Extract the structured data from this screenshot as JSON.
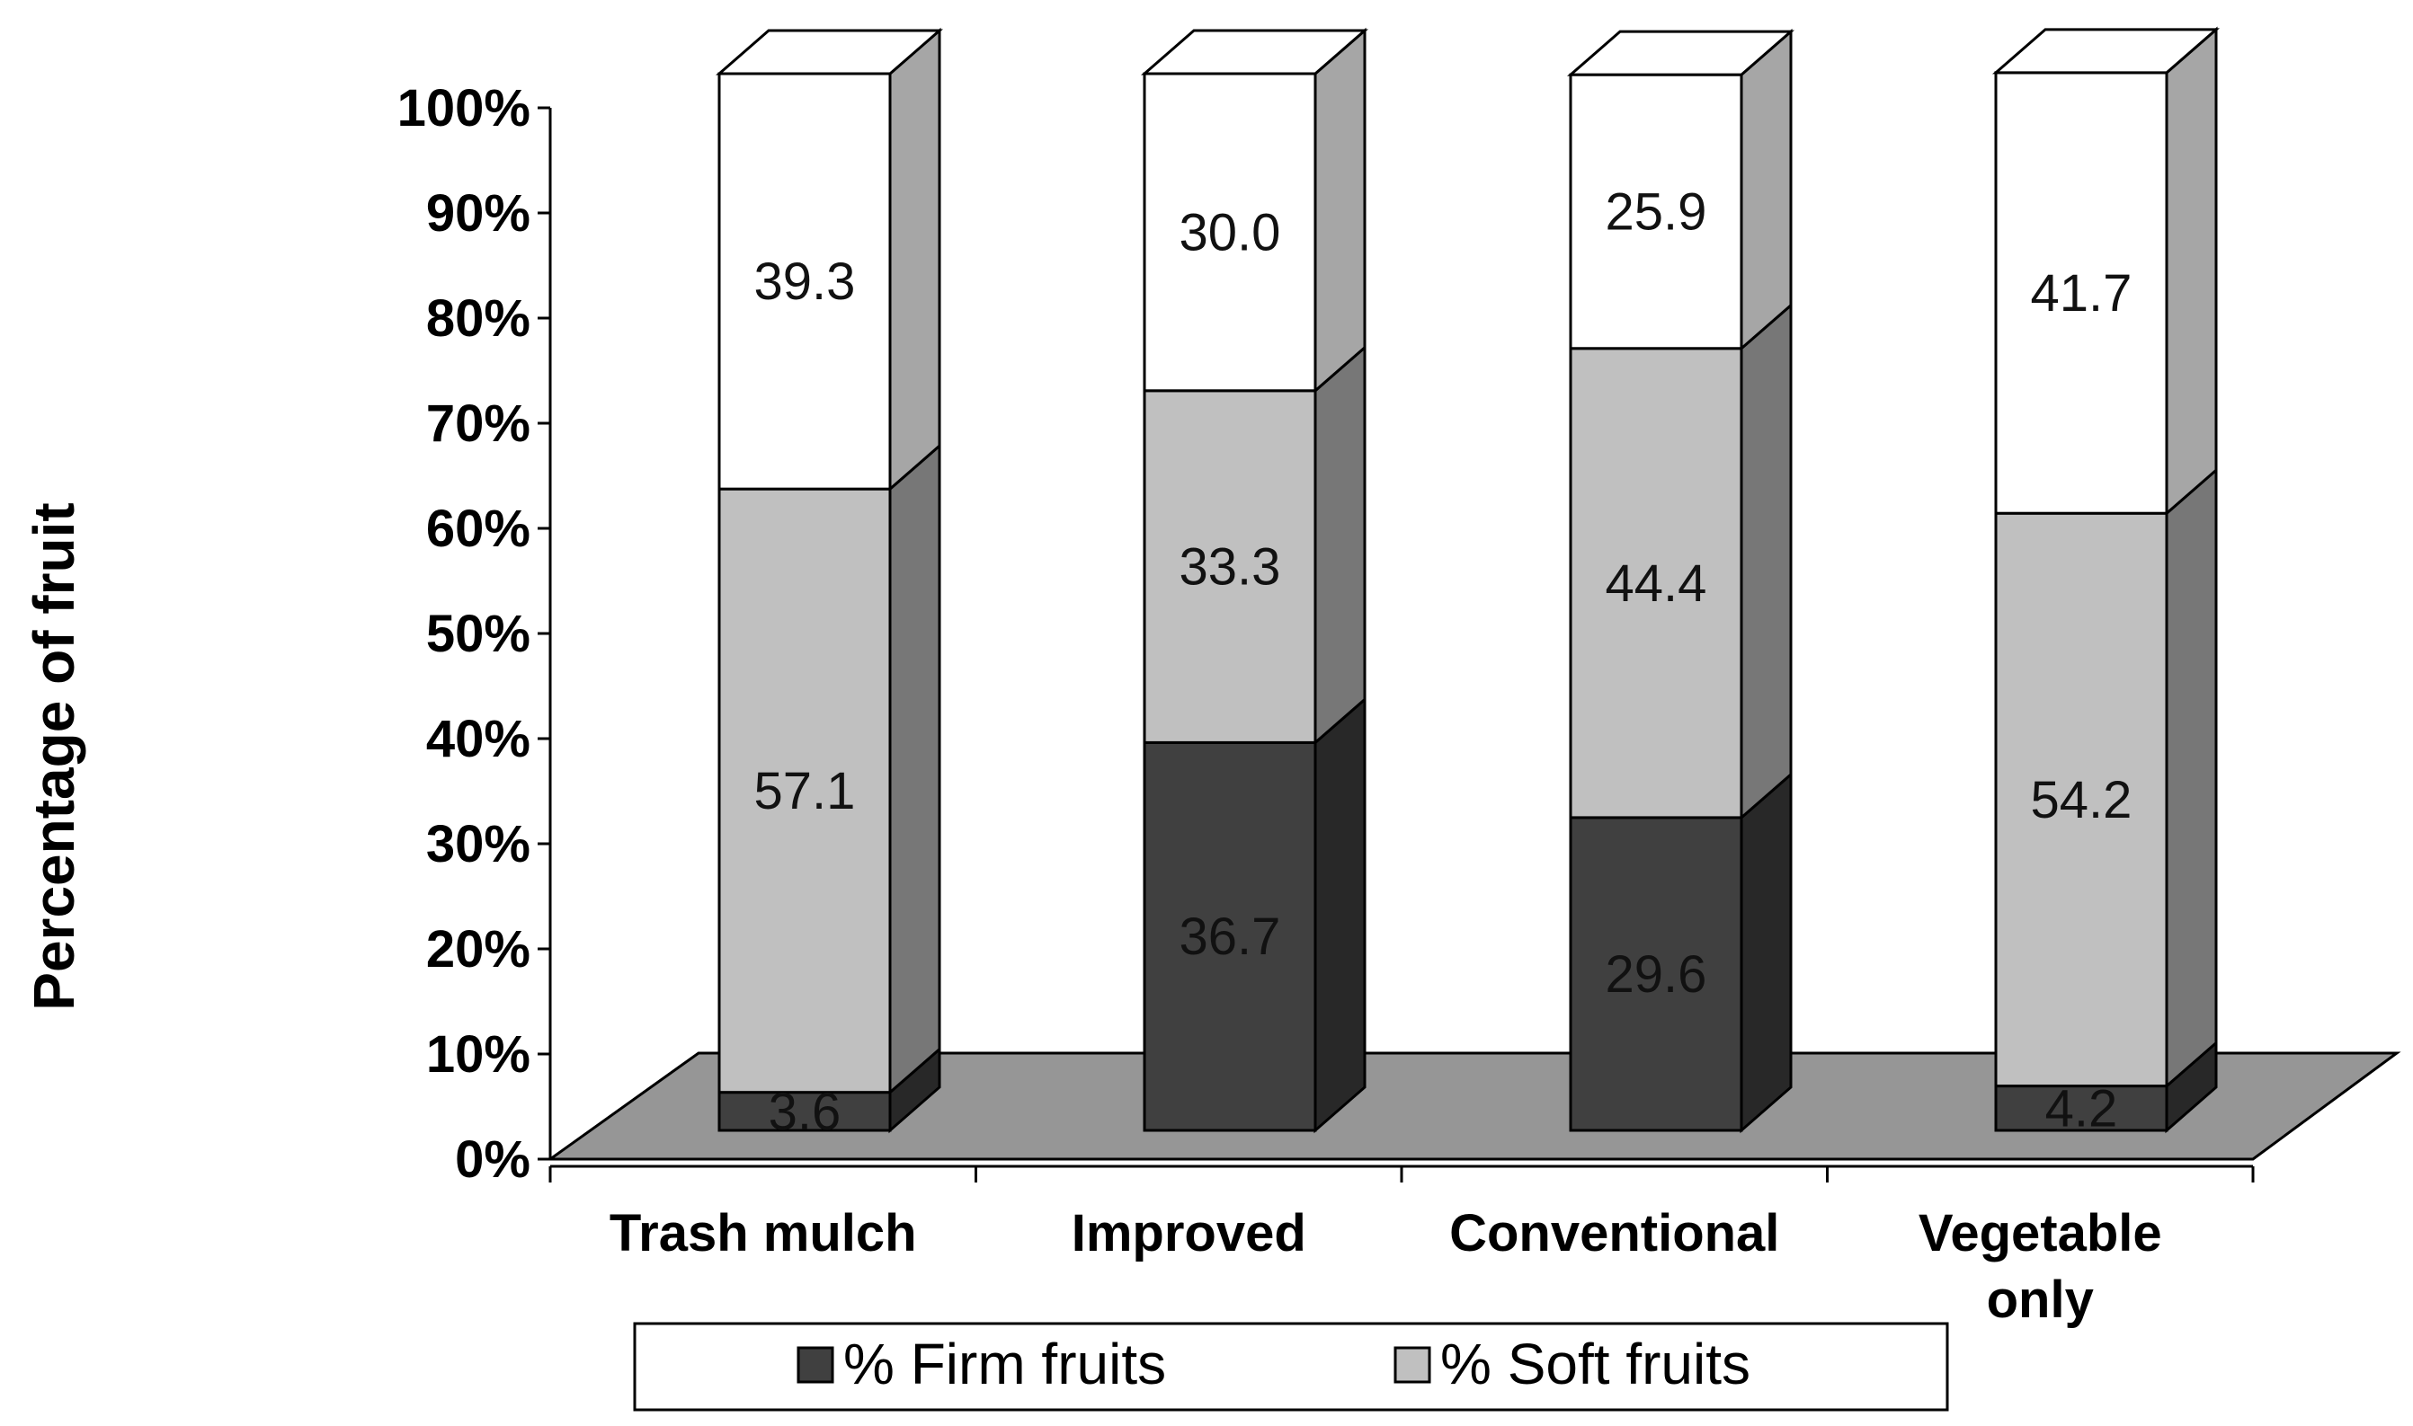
{
  "chart_data": {
    "type": "bar",
    "stacked": true,
    "normalized_percent": true,
    "three_d": true,
    "categories": [
      [
        "Trash mulch"
      ],
      [
        "Improved"
      ],
      [
        "Conventional"
      ],
      [
        "Vegetable",
        "only"
      ]
    ],
    "series": [
      {
        "name": "% Firm fruits",
        "values": [
          3.6,
          36.7,
          29.6,
          4.2
        ],
        "color": "#404040"
      },
      {
        "name": "% Soft fruits",
        "values": [
          57.1,
          33.3,
          44.4,
          54.2
        ],
        "color": "#c0c0c0"
      },
      {
        "name": "",
        "values": [
          39.3,
          30.0,
          25.9,
          41.7
        ],
        "color": "#ffffff"
      }
    ],
    "data_labels": [
      [
        "3.6",
        "36.7",
        "29.6",
        "4.2"
      ],
      [
        "57.1",
        "33.3",
        "44.4",
        "54.2"
      ],
      [
        "39.3",
        "30.0",
        "25.9",
        "41.7"
      ]
    ],
    "yticks": [
      "0%",
      "10%",
      "20%",
      "30%",
      "40%",
      "50%",
      "60%",
      "70%",
      "80%",
      "90%",
      "100%"
    ],
    "ylim": [
      0,
      100
    ],
    "ylabel": "Percentage of fruit",
    "xlabel": "",
    "title": "",
    "grid": false,
    "legend": {
      "position": "bottom",
      "entries": [
        "% Firm fruits",
        "% Soft fruits"
      ]
    },
    "floor_color": "#969696"
  }
}
